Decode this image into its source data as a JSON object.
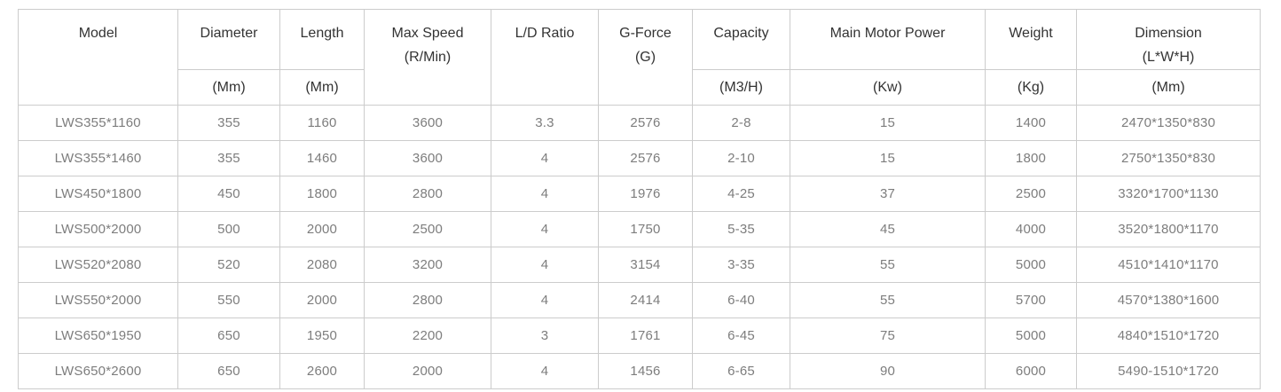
{
  "colors": {
    "border": "#cccccc",
    "header_text": "#333333",
    "body_text": "#7d7d7d",
    "background": "#ffffff"
  },
  "table": {
    "columns": [
      {
        "key": "model",
        "label": "Model",
        "label2": null,
        "unit": null
      },
      {
        "key": "diameter",
        "label": "Diameter",
        "label2": null,
        "unit": "(Mm)"
      },
      {
        "key": "length",
        "label": "Length",
        "label2": null,
        "unit": "(Mm)"
      },
      {
        "key": "max_speed",
        "label": "Max Speed",
        "label2": "(R/Min)",
        "unit": null
      },
      {
        "key": "ld_ratio",
        "label": "L/D Ratio",
        "label2": null,
        "unit": null
      },
      {
        "key": "g_force",
        "label": "G-Force",
        "label2": "(G)",
        "unit": null
      },
      {
        "key": "capacity",
        "label": "Capacity",
        "label2": null,
        "unit": "(M3/H)"
      },
      {
        "key": "main_motor_power",
        "label": "Main Motor Power",
        "label2": null,
        "unit": "(Kw)"
      },
      {
        "key": "weight",
        "label": "Weight",
        "label2": null,
        "unit": "(Kg)"
      },
      {
        "key": "dimension",
        "label": "Dimension",
        "label2": "(L*W*H)",
        "unit": "(Mm)"
      }
    ],
    "rows": [
      [
        "LWS355*1160",
        "355",
        "1160",
        "3600",
        "3.3",
        "2576",
        "2-8",
        "15",
        "1400",
        "2470*1350*830"
      ],
      [
        "LWS355*1460",
        "355",
        "1460",
        "3600",
        "4",
        "2576",
        "2-10",
        "15",
        "1800",
        "2750*1350*830"
      ],
      [
        "LWS450*1800",
        "450",
        "1800",
        "2800",
        "4",
        "1976",
        "4-25",
        "37",
        "2500",
        "3320*1700*1130"
      ],
      [
        "LWS500*2000",
        "500",
        "2000",
        "2500",
        "4",
        "1750",
        "5-35",
        "45",
        "4000",
        "3520*1800*1170"
      ],
      [
        "LWS520*2080",
        "520",
        "2080",
        "3200",
        "4",
        "3154",
        "3-35",
        "55",
        "5000",
        "4510*1410*1170"
      ],
      [
        "LWS550*2000",
        "550",
        "2000",
        "2800",
        "4",
        "2414",
        "6-40",
        "55",
        "5700",
        "4570*1380*1600"
      ],
      [
        "LWS650*1950",
        "650",
        "1950",
        "2200",
        "3",
        "1761",
        "6-45",
        "75",
        "5000",
        "4840*1510*1720"
      ],
      [
        "LWS650*2600",
        "650",
        "2600",
        "2000",
        "4",
        "1456",
        "6-65",
        "90",
        "6000",
        "5490-1510*1720"
      ]
    ]
  }
}
